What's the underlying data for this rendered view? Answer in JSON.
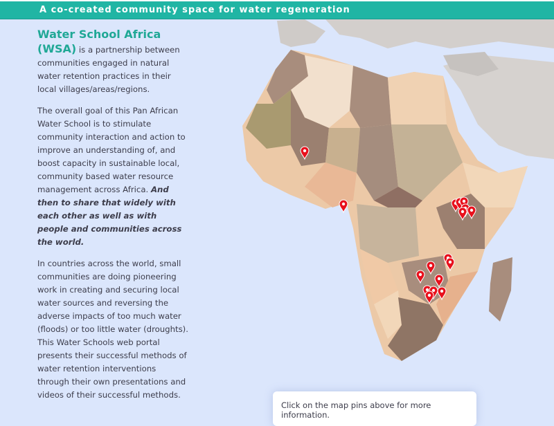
{
  "banner": {
    "title": "A co-created community space for water regeneration"
  },
  "intro": {
    "title": "Water School Africa (WSA)",
    "p1_rest": " is a partnership between communities engaged in natural water retention practices in their local villages/areas/regions.",
    "p2_plain": "The overall goal of this Pan African Water School is to stimulate community interaction and action to improve an understanding of, and boost capacity in sustainable local, community based water resource management across Africa. ",
    "p2_emph": "And then to share that widely with each other as well as with people and communities across the world.",
    "p3": "In countries across the world, small communities are doing pioneering work in creating and securing local water sources and reversing the adverse impacts of too much water (floods) or too little water (droughts). This Water Schools web portal presents their successful methods of water retention interventions through their own presentations and videos of their successful methods."
  },
  "map": {
    "info_text": "Click on the map pins above for more information.",
    "pin_color": "#e8101c",
    "ocean_color": "#dbe6fc",
    "pin_count": 17
  }
}
